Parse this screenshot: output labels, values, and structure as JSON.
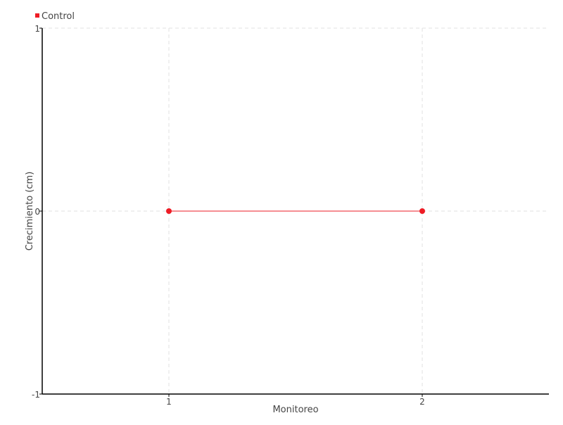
{
  "chart_data": {
    "type": "line",
    "title": "",
    "xlabel": "Monitoreo",
    "ylabel": "Crecimiento (cm)",
    "xlim": [
      0.5,
      2.5
    ],
    "ylim": [
      -1,
      1
    ],
    "xticks": [
      1,
      2
    ],
    "yticks": [
      -1,
      0,
      1
    ],
    "grid": true,
    "legend": "top-left",
    "series": [
      {
        "name": "Control",
        "color": "#ee1c25",
        "x": [
          1,
          2
        ],
        "y": [
          0,
          0
        ]
      }
    ]
  }
}
